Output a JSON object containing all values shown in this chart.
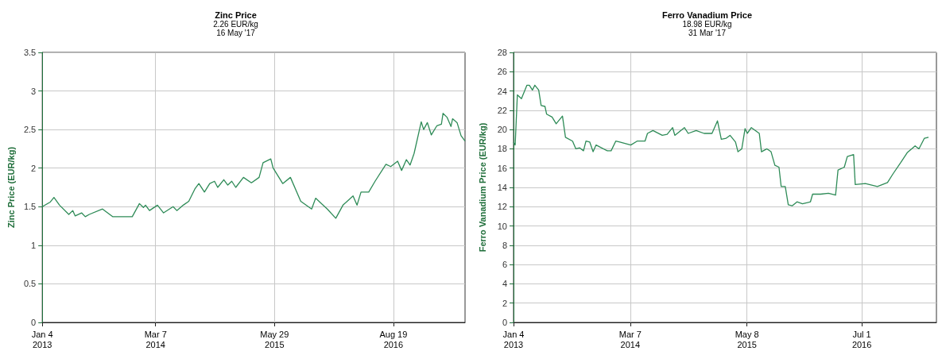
{
  "chart_data": [
    {
      "type": "line",
      "title": "Zinc Price",
      "subtitle": "2.26 EUR/kg\n16 May '17",
      "ylabel": "Zinc Price (EUR/kg)",
      "x": [
        "2013-01-04",
        "2013-02-03",
        "2013-02-17",
        "2013-03-10",
        "2013-04-14",
        "2013-04-29",
        "2013-05-08",
        "2013-06-01",
        "2013-06-15",
        "2013-06-30",
        "2013-08-19",
        "2013-09-27",
        "2013-11-07",
        "2013-12-09",
        "2014-01-05",
        "2014-01-20",
        "2014-01-28",
        "2014-02-12",
        "2014-03-14",
        "2014-04-06",
        "2014-05-12",
        "2014-05-26",
        "2014-06-19",
        "2014-07-10",
        "2014-08-02",
        "2014-08-17",
        "2014-09-07",
        "2014-09-27",
        "2014-10-15",
        "2014-10-27",
        "2014-11-19",
        "2014-12-04",
        "2014-12-19",
        "2015-01-03",
        "2015-02-01",
        "2015-03-03",
        "2015-04-01",
        "2015-04-16",
        "2015-05-15",
        "2015-05-24",
        "2015-06-29",
        "2015-07-28",
        "2015-09-05",
        "2015-10-16",
        "2015-10-31",
        "2015-12-14",
        "2016-01-15",
        "2016-02-11",
        "2016-03-20",
        "2016-04-04",
        "2016-04-19",
        "2016-05-18",
        "2016-06-11",
        "2016-07-22",
        "2016-08-09",
        "2016-09-04",
        "2016-09-19",
        "2016-10-07",
        "2016-10-21",
        "2016-11-05",
        "2016-12-02",
        "2016-12-11",
        "2016-12-25",
        "2017-01-09",
        "2017-01-30",
        "2017-02-16",
        "2017-02-22",
        "2017-03-09",
        "2017-03-24",
        "2017-03-30",
        "2017-04-16",
        "2017-05-01",
        "2017-05-16"
      ],
      "series": [
        {
          "color": "#2e8b57",
          "values": [
            1.5,
            1.56,
            1.62,
            1.52,
            1.4,
            1.45,
            1.38,
            1.42,
            1.37,
            1.4,
            1.47,
            1.37,
            1.37,
            1.37,
            1.54,
            1.49,
            1.52,
            1.45,
            1.52,
            1.42,
            1.5,
            1.45,
            1.52,
            1.57,
            1.73,
            1.8,
            1.69,
            1.8,
            1.83,
            1.75,
            1.85,
            1.78,
            1.83,
            1.75,
            1.88,
            1.81,
            1.88,
            2.07,
            2.12,
            2.0,
            1.8,
            1.88,
            1.57,
            1.47,
            1.61,
            1.47,
            1.35,
            1.52,
            1.64,
            1.52,
            1.69,
            1.69,
            1.83,
            2.05,
            2.02,
            2.09,
            1.97,
            2.11,
            2.04,
            2.19,
            2.6,
            2.5,
            2.59,
            2.43,
            2.55,
            2.57,
            2.71,
            2.66,
            2.54,
            2.64,
            2.59,
            2.42,
            2.35
          ]
        }
      ],
      "xlim": [
        "2013-01-04",
        "2017-05-16"
      ],
      "xticks": [
        {
          "value": "2013-01-04",
          "label": "Jan 4\n2013"
        },
        {
          "value": "2014-03-07",
          "label": "Mar 7\n2014"
        },
        {
          "value": "2015-05-29",
          "label": "May 29\n2015"
        },
        {
          "value": "2016-08-19",
          "label": "Aug 19\n2016"
        }
      ],
      "ylim": [
        0,
        3.5
      ],
      "yticks": [
        0,
        0.5,
        1,
        1.5,
        2,
        2.5,
        3,
        3.5
      ],
      "grid": true
    },
    {
      "type": "line",
      "title": "Ferro Vanadium Price",
      "subtitle": "18.98 EUR/kg\n31 Mar '17",
      "ylabel": "Ferro Vanadium Price (EUR/kg)",
      "x": [
        "2013-01-04",
        "2013-01-10",
        "2013-01-18",
        "2013-02-02",
        "2013-02-22",
        "2013-03-03",
        "2013-03-14",
        "2013-03-23",
        "2013-04-06",
        "2013-04-15",
        "2013-04-29",
        "2013-05-05",
        "2013-05-25",
        "2013-06-09",
        "2013-07-02",
        "2013-07-13",
        "2013-08-08",
        "2013-08-20",
        "2013-09-03",
        "2013-09-17",
        "2013-09-26",
        "2013-10-10",
        "2013-10-22",
        "2013-11-02",
        "2013-12-13",
        "2013-12-27",
        "2014-01-13",
        "2014-01-28",
        "2014-03-09",
        "2014-04-01",
        "2014-04-30",
        "2014-05-09",
        "2014-05-29",
        "2014-07-02",
        "2014-07-20",
        "2014-08-09",
        "2014-08-17",
        "2014-09-21",
        "2014-10-05",
        "2014-11-03",
        "2014-12-02",
        "2014-12-31",
        "2015-01-20",
        "2015-02-03",
        "2015-02-21",
        "2015-03-07",
        "2015-03-27",
        "2015-04-05",
        "2015-04-19",
        "2015-05-01",
        "2015-05-09",
        "2015-05-24",
        "2015-06-22",
        "2015-06-30",
        "2015-07-20",
        "2015-08-04",
        "2015-08-18",
        "2015-09-02",
        "2015-09-10",
        "2015-09-25",
        "2015-10-06",
        "2015-10-21",
        "2015-11-07",
        "2015-11-27",
        "2015-12-26",
        "2016-01-03",
        "2016-02-01",
        "2016-03-01",
        "2016-03-27",
        "2016-04-05",
        "2016-04-28",
        "2016-05-09",
        "2016-06-01",
        "2016-06-07",
        "2016-07-14",
        "2016-08-27",
        "2016-10-03",
        "2016-10-23",
        "2016-11-21",
        "2016-12-14",
        "2017-01-12",
        "2017-01-26",
        "2017-02-15",
        "2017-03-02"
      ],
      "series": [
        {
          "color": "#2e8b57",
          "values": [
            18.7,
            18.4,
            23.6,
            23.2,
            24.6,
            24.6,
            24.1,
            24.6,
            24.1,
            22.5,
            22.4,
            21.6,
            21.3,
            20.6,
            21.4,
            19.2,
            18.8,
            18.0,
            18.1,
            17.8,
            18.8,
            18.7,
            17.7,
            18.4,
            17.8,
            17.8,
            18.8,
            18.7,
            18.4,
            18.8,
            18.8,
            19.6,
            19.9,
            19.4,
            19.5,
            20.2,
            19.4,
            20.2,
            19.6,
            19.9,
            19.6,
            19.6,
            20.9,
            19.0,
            19.1,
            19.4,
            18.7,
            17.7,
            18.0,
            20.1,
            19.6,
            20.2,
            19.6,
            17.7,
            18.0,
            17.7,
            16.3,
            16.1,
            14.1,
            14.1,
            12.2,
            12.1,
            12.5,
            12.3,
            12.5,
            13.3,
            13.3,
            13.4,
            13.2,
            15.8,
            16.1,
            17.2,
            17.4,
            14.3,
            14.4,
            14.1,
            14.5,
            15.4,
            16.6,
            17.6,
            18.3,
            18.0,
            19.1,
            19.2
          ]
        }
      ],
      "xlim": [
        "2013-01-04",
        "2017-03-31"
      ],
      "xticks": [
        {
          "value": "2013-01-04",
          "label": "Jan 4\n2013"
        },
        {
          "value": "2014-03-07",
          "label": "Mar 7\n2014"
        },
        {
          "value": "2015-05-08",
          "label": "May 8\n2015"
        },
        {
          "value": "2016-07-01",
          "label": "Jul 1\n2016"
        }
      ],
      "ylim": [
        0,
        28
      ],
      "yticks": [
        0,
        2,
        4,
        6,
        8,
        10,
        12,
        14,
        16,
        18,
        20,
        22,
        24,
        26,
        28
      ],
      "grid": true
    }
  ]
}
